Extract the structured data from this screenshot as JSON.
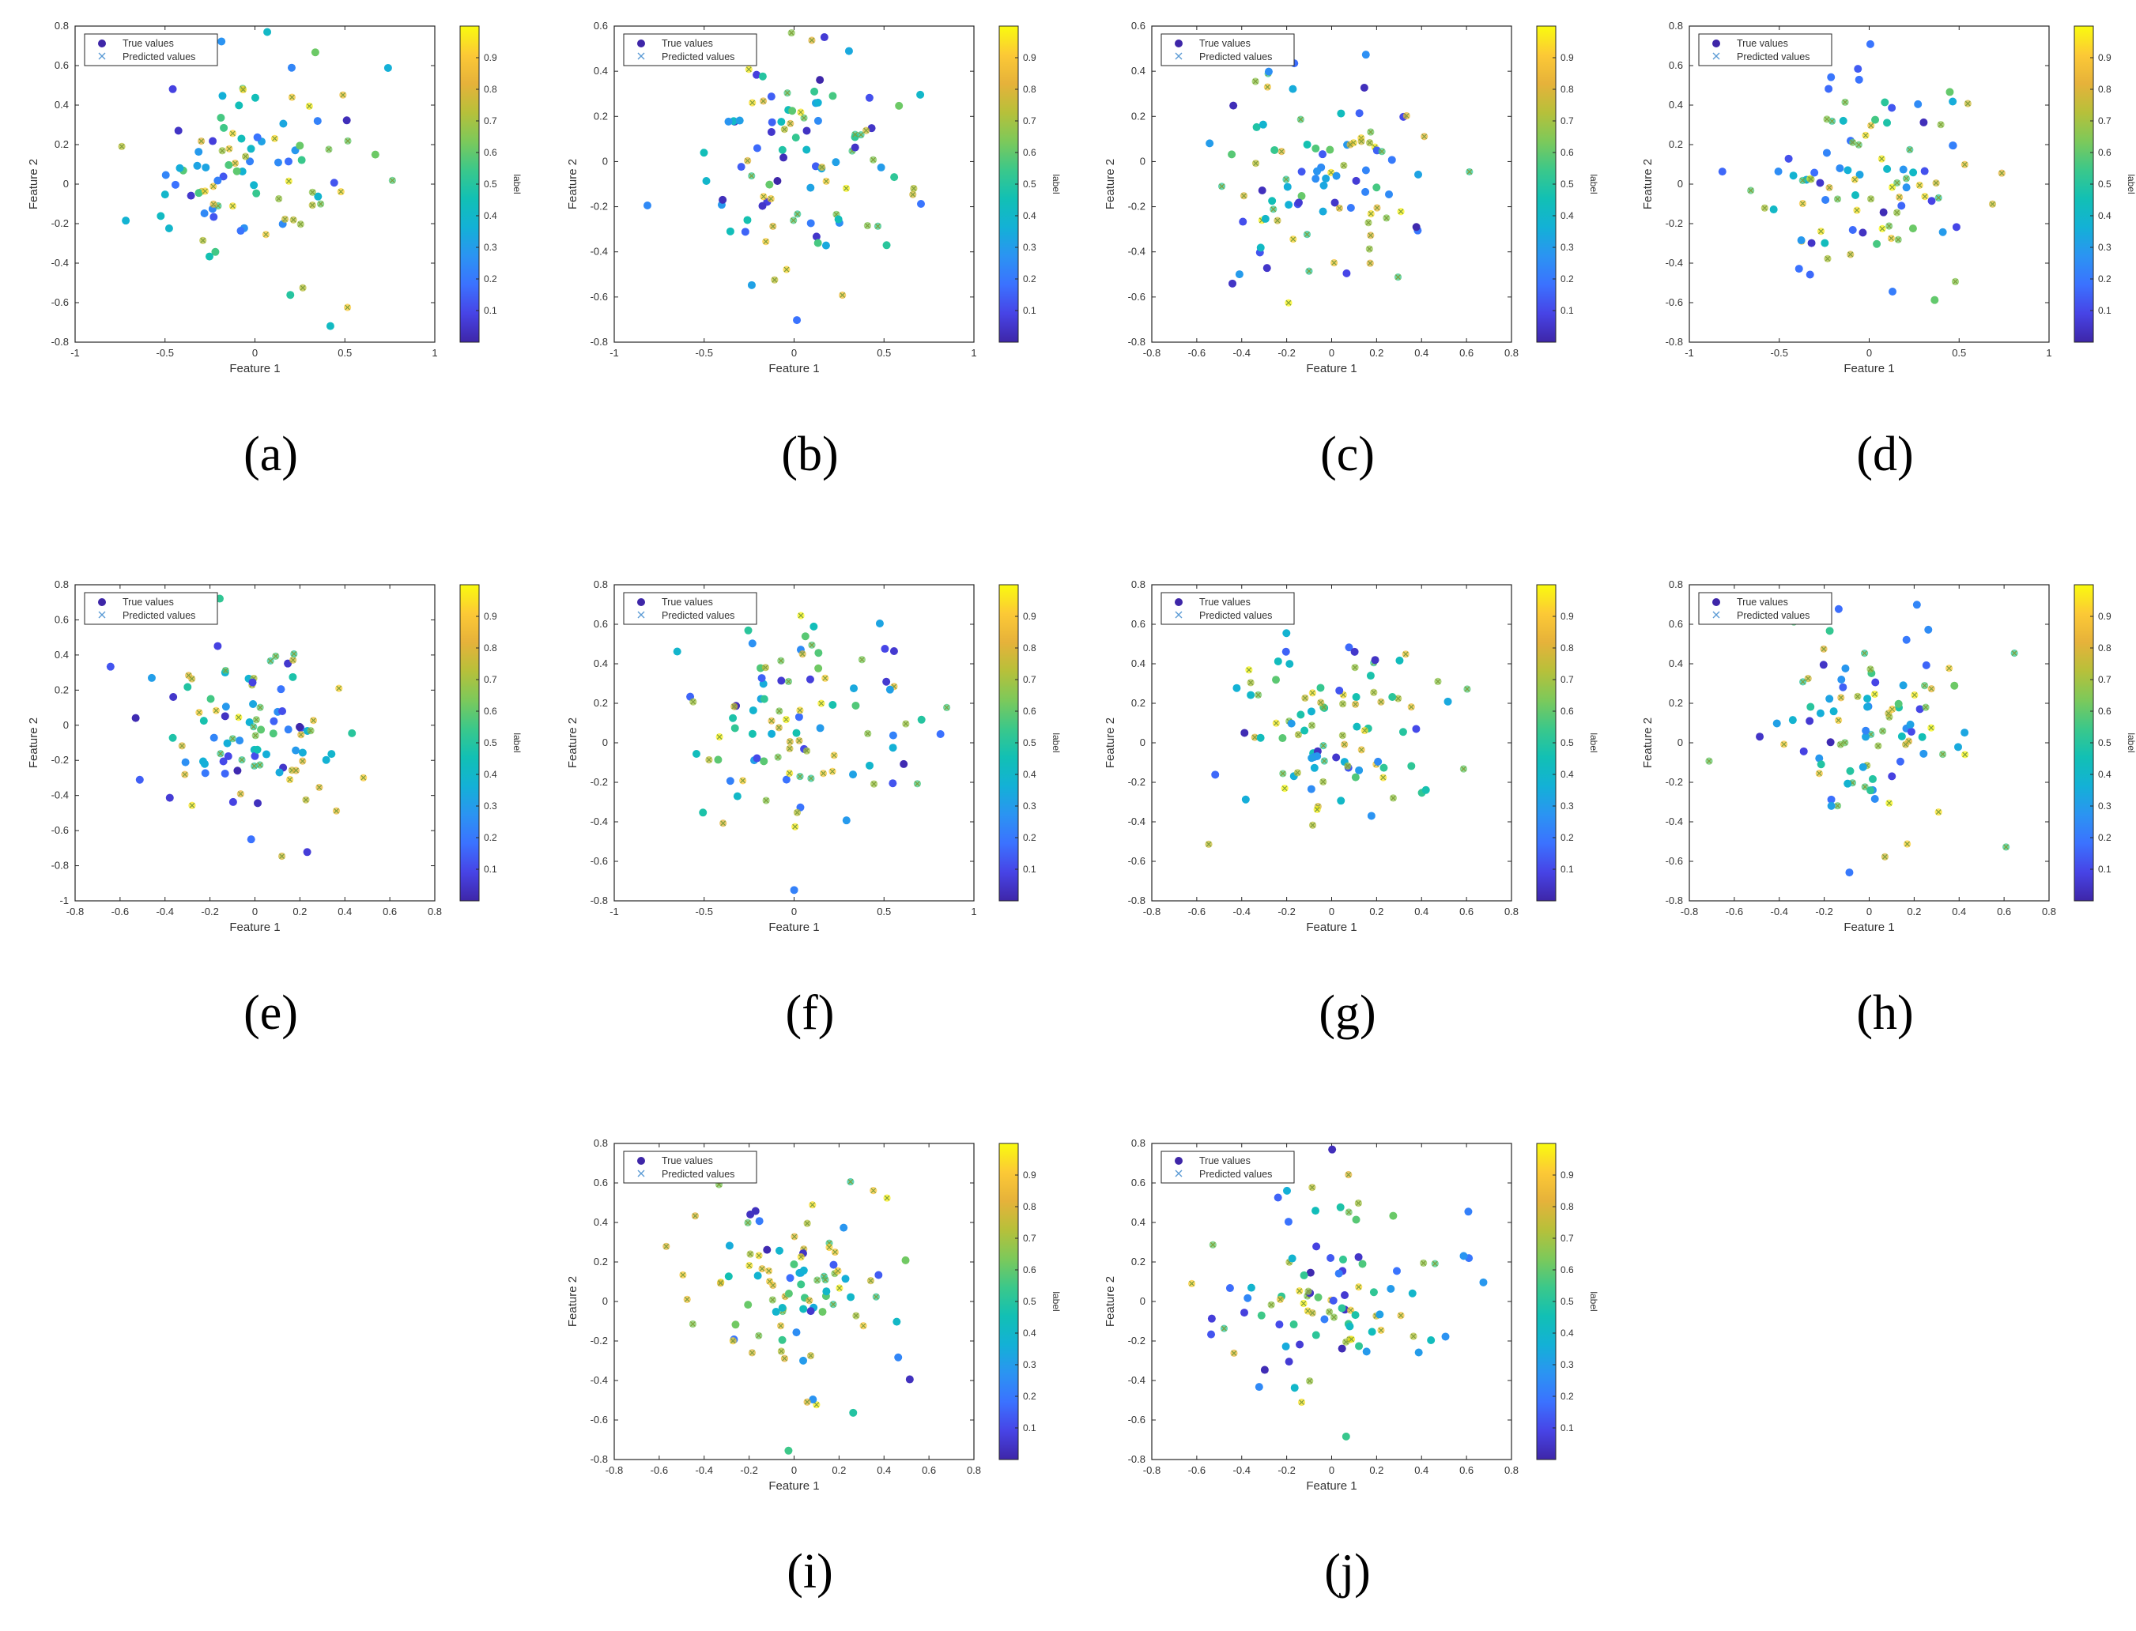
{
  "figure": {
    "legend_true_label": "True values",
    "legend_pred_label": "Predicted values",
    "colorbar_label": "label",
    "colorbar_ticks": [
      "0.1",
      "0.2",
      "0.3",
      "0.4",
      "0.5",
      "0.6",
      "0.7",
      "0.8",
      "0.9"
    ]
  },
  "colors": {
    "colormap": [
      "#3e26a8",
      "#4744e6",
      "#3b72ff",
      "#2b94f2",
      "#13b1d6",
      "#12c0b4",
      "#3bc88a",
      "#7dc95a",
      "#b7c03a",
      "#e6b23a",
      "#fcc936",
      "#f9fb0e"
    ],
    "true_marker": "#3e26a8",
    "pred_marker": "#5b9bd5"
  },
  "chart_data": [
    {
      "id": "a",
      "caption": "(a)",
      "type": "scatter",
      "xlabel": "Feature 1",
      "ylabel": "Feature 2",
      "xlim": [
        -1,
        1
      ],
      "ylim": [
        -0.8,
        0.8
      ],
      "xticks": [
        "-1",
        "-0.5",
        "0",
        "0.5",
        "1"
      ],
      "yticks": [
        "-0.8",
        "-0.6",
        "-0.4",
        "-0.2",
        "0",
        "0.2",
        "0.4",
        "0.6",
        "0.8"
      ],
      "seed": 11
    },
    {
      "id": "b",
      "caption": "(b)",
      "type": "scatter",
      "xlabel": "Feature 1",
      "ylabel": "Feature 2",
      "xlim": [
        -1,
        1
      ],
      "ylim": [
        -0.8,
        0.6
      ],
      "xticks": [
        "-1",
        "-0.5",
        "0",
        "0.5",
        "1"
      ],
      "yticks": [
        "-0.8",
        "-0.6",
        "-0.4",
        "-0.2",
        "0",
        "0.2",
        "0.4",
        "0.6"
      ],
      "seed": 23
    },
    {
      "id": "c",
      "caption": "(c)",
      "type": "scatter",
      "xlabel": "Feature 1",
      "ylabel": "Feature 2",
      "xlim": [
        -0.8,
        0.8
      ],
      "ylim": [
        -0.8,
        0.6
      ],
      "xticks": [
        "-0.8",
        "-0.6",
        "-0.4",
        "-0.2",
        "0",
        "0.2",
        "0.4",
        "0.6",
        "0.8"
      ],
      "yticks": [
        "-0.8",
        "-0.6",
        "-0.4",
        "-0.2",
        "0",
        "0.2",
        "0.4",
        "0.6"
      ],
      "seed": 37
    },
    {
      "id": "d",
      "caption": "(d)",
      "type": "scatter",
      "xlabel": "Feature 1",
      "ylabel": "Feature 2",
      "xlim": [
        -1,
        1
      ],
      "ylim": [
        -0.8,
        0.8
      ],
      "xticks": [
        "-1",
        "-0.5",
        "0",
        "0.5",
        "1"
      ],
      "yticks": [
        "-0.8",
        "-0.6",
        "-0.4",
        "-0.2",
        "0",
        "0.2",
        "0.4",
        "0.6",
        "0.8"
      ],
      "seed": 41
    },
    {
      "id": "e",
      "caption": "(e)",
      "type": "scatter",
      "xlabel": "Feature 1",
      "ylabel": "Feature 2",
      "xlim": [
        -0.8,
        0.8
      ],
      "ylim": [
        -1,
        0.8
      ],
      "xticks": [
        "-0.8",
        "-0.6",
        "-0.4",
        "-0.2",
        "0",
        "0.2",
        "0.4",
        "0.6",
        "0.8"
      ],
      "yticks": [
        "-1",
        "-0.8",
        "-0.6",
        "-0.4",
        "-0.2",
        "0",
        "0.2",
        "0.4",
        "0.6",
        "0.8"
      ],
      "seed": 53
    },
    {
      "id": "f",
      "caption": "(f)",
      "type": "scatter",
      "xlabel": "Feature 1",
      "ylabel": "Feature 2",
      "xlim": [
        -1,
        1
      ],
      "ylim": [
        -0.8,
        0.8
      ],
      "xticks": [
        "-1",
        "-0.5",
        "0",
        "0.5",
        "1"
      ],
      "yticks": [
        "-0.8",
        "-0.6",
        "-0.4",
        "-0.2",
        "0",
        "0.2",
        "0.4",
        "0.6",
        "0.8"
      ],
      "seed": 67
    },
    {
      "id": "g",
      "caption": "(g)",
      "type": "scatter",
      "xlabel": "Feature 1",
      "ylabel": "Feature 2",
      "xlim": [
        -0.8,
        0.8
      ],
      "ylim": [
        -0.8,
        0.8
      ],
      "xticks": [
        "-0.8",
        "-0.6",
        "-0.4",
        "-0.2",
        "0",
        "0.2",
        "0.4",
        "0.6",
        "0.8"
      ],
      "yticks": [
        "-0.8",
        "-0.6",
        "-0.4",
        "-0.2",
        "0",
        "0.2",
        "0.4",
        "0.6",
        "0.8"
      ],
      "seed": 71
    },
    {
      "id": "h",
      "caption": "(h)",
      "type": "scatter",
      "xlabel": "Feature 1",
      "ylabel": "Feature 2",
      "xlim": [
        -0.8,
        0.8
      ],
      "ylim": [
        -0.8,
        0.8
      ],
      "xticks": [
        "-0.8",
        "-0.6",
        "-0.4",
        "-0.2",
        "0",
        "0.2",
        "0.4",
        "0.6",
        "0.8"
      ],
      "yticks": [
        "-0.8",
        "-0.6",
        "-0.4",
        "-0.2",
        "0",
        "0.2",
        "0.4",
        "0.6",
        "0.8"
      ],
      "seed": 83
    },
    {
      "id": "i",
      "caption": "(i)",
      "type": "scatter",
      "xlabel": "Feature 1",
      "ylabel": "Feature 2",
      "xlim": [
        -0.8,
        0.8
      ],
      "ylim": [
        -0.8,
        0.8
      ],
      "xticks": [
        "-0.8",
        "-0.6",
        "-0.4",
        "-0.2",
        "0",
        "0.2",
        "0.4",
        "0.6",
        "0.8"
      ],
      "yticks": [
        "-0.8",
        "-0.6",
        "-0.4",
        "-0.2",
        "0",
        "0.2",
        "0.4",
        "0.6",
        "0.8"
      ],
      "seed": 97
    },
    {
      "id": "j",
      "caption": "(j)",
      "type": "scatter",
      "xlabel": "Feature 1",
      "ylabel": "Feature 2",
      "xlim": [
        -0.8,
        0.8
      ],
      "ylim": [
        -0.8,
        0.8
      ],
      "xticks": [
        "-0.8",
        "-0.6",
        "-0.4",
        "-0.2",
        "0",
        "0.2",
        "0.4",
        "0.6",
        "0.8"
      ],
      "yticks": [
        "-0.8",
        "-0.6",
        "-0.4",
        "-0.2",
        "0",
        "0.2",
        "0.4",
        "0.6",
        "0.8"
      ],
      "seed": 103
    }
  ]
}
